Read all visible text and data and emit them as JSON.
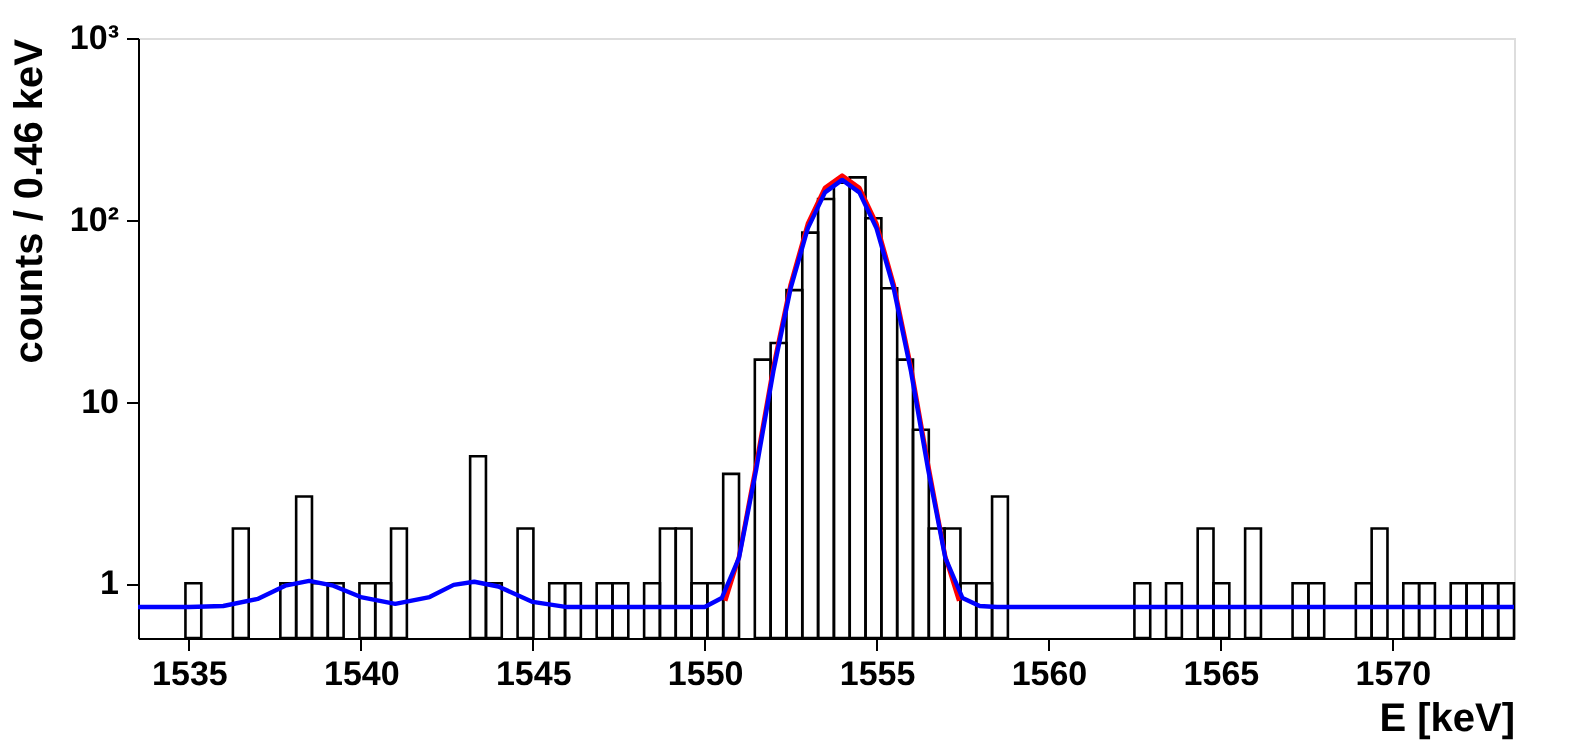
{
  "chart_data": {
    "type": "histogram",
    "xlabel": "E [keV]",
    "ylabel": "counts / 0.46 keV",
    "bins": [
      1533.52,
      1533.98,
      1534.44,
      1534.9,
      1535.36,
      1535.82,
      1536.28,
      1536.74,
      1537.2,
      1537.66,
      1538.12,
      1538.58,
      1539.04,
      1539.5,
      1539.96,
      1540.42,
      1540.88,
      1541.34,
      1541.8,
      1542.26,
      1542.72,
      1543.18,
      1543.64,
      1544.1,
      1544.56,
      1545.02,
      1545.48,
      1545.94,
      1546.4,
      1546.86,
      1547.32,
      1547.78,
      1548.24,
      1548.7,
      1549.16,
      1549.62,
      1550.08,
      1550.54,
      1551.0,
      1551.46,
      1551.92,
      1552.38,
      1552.84,
      1553.3,
      1553.76,
      1554.22,
      1554.68,
      1555.14,
      1555.6,
      1556.06,
      1556.52,
      1556.98,
      1557.44,
      1557.9,
      1558.36,
      1558.82,
      1559.28,
      1559.74,
      1560.2,
      1560.66,
      1561.12,
      1561.58,
      1562.04,
      1562.5,
      1562.96,
      1563.42,
      1563.88,
      1564.34,
      1564.8,
      1565.26,
      1565.72,
      1566.18,
      1566.64,
      1567.1,
      1567.56,
      1568.02,
      1568.48,
      1568.94,
      1569.4,
      1569.86,
      1570.32,
      1570.78,
      1571.24,
      1571.7,
      1572.16,
      1572.62,
      1573.08,
      1573.54
    ],
    "series": [
      {
        "color": "#000000",
        "values": [
          null,
          null,
          null,
          1,
          null,
          null,
          2,
          null,
          null,
          1,
          3,
          1,
          1,
          null,
          1,
          1,
          2,
          null,
          null,
          null,
          null,
          5,
          1,
          null,
          2,
          null,
          1,
          1,
          null,
          1,
          1,
          null,
          1,
          2,
          2,
          1,
          1,
          4,
          null,
          17,
          21,
          41,
          85,
          130,
          160,
          171,
          102,
          42,
          17,
          7,
          2,
          2,
          1,
          1,
          3,
          null,
          null,
          null,
          null,
          null,
          null,
          null,
          null,
          1,
          null,
          1,
          null,
          2,
          1,
          null,
          2,
          null,
          null,
          1,
          1,
          null,
          null,
          1,
          2,
          null,
          1,
          1,
          null,
          1,
          1,
          1,
          1
        ]
      },
      {
        "type": "line",
        "color": "#ff0000",
        "x": [
          1550.6,
          1551,
          1551.5,
          1552,
          1552.5,
          1553,
          1553.5,
          1554,
          1554.5,
          1555,
          1555.5,
          1556,
          1556.5,
          1557,
          1557.4
        ],
        "values": [
          0.8,
          1.4,
          4.5,
          15.5,
          44,
          95,
          150,
          175,
          150,
          95,
          44,
          15.5,
          4.5,
          1.4,
          0.8
        ]
      },
      {
        "type": "line",
        "color": "#0000ff",
        "x": [
          1533.52,
          1535,
          1536,
          1537,
          1537.8,
          1538.5,
          1539.2,
          1540,
          1541,
          1542,
          1542.7,
          1543.3,
          1544,
          1545,
          1546,
          1550,
          1550.5,
          1551,
          1551.5,
          1552,
          1552.5,
          1553,
          1553.5,
          1554,
          1554.5,
          1555,
          1555.5,
          1556,
          1556.5,
          1557,
          1557.5,
          1558,
          1558.5,
          1573.54
        ],
        "values": [
          0.74,
          0.74,
          0.75,
          0.82,
          0.97,
          1.03,
          0.97,
          0.84,
          0.77,
          0.84,
          0.98,
          1.02,
          0.96,
          0.79,
          0.74,
          0.74,
          0.83,
          1.38,
          4.23,
          14.7,
          41.9,
          89.7,
          141.5,
          165.7,
          141.5,
          89.7,
          41.9,
          14.7,
          4.23,
          1.38,
          0.83,
          0.75,
          0.74,
          0.74
        ]
      }
    ],
    "xlim": [
      1533.52,
      1573.54
    ],
    "xticks": [
      1535,
      1540,
      1545,
      1550,
      1555,
      1560,
      1565,
      1570
    ],
    "ylim": [
      0.5,
      1000
    ],
    "yticks": [
      1,
      10,
      {
        "value": 100,
        "label": "10²"
      },
      {
        "value": 1000,
        "label": "10³"
      }
    ],
    "log": "y",
    "grid": false
  }
}
